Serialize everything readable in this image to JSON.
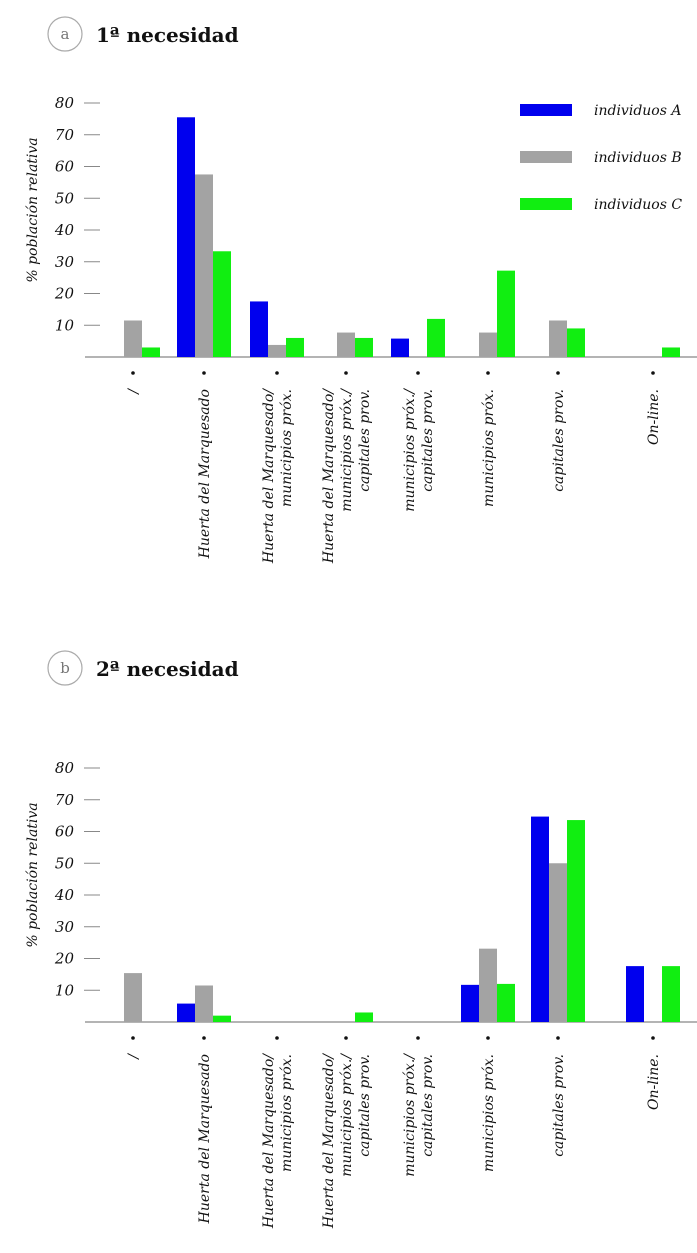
{
  "colors": {
    "A": "#0000ee",
    "B": "#a3a3a3",
    "C": "#11ee11"
  },
  "legend": [
    {
      "key": "A",
      "label": "individuos A"
    },
    {
      "key": "B",
      "label": "individuos B"
    },
    {
      "key": "C",
      "label": "individuos C"
    }
  ],
  "chart_data": [
    {
      "type": "bar",
      "badge": "a",
      "title": "1ª necesidad",
      "ylabel": "% población relativa",
      "ylim": [
        0,
        80
      ],
      "yticks": [
        10,
        20,
        30,
        40,
        50,
        60,
        70,
        80
      ],
      "legend_position": "top-right",
      "categories": [
        [
          "/"
        ],
        [
          "Huerta del Marquesado"
        ],
        [
          "Huerta del Marquesado/",
          "municipios próx."
        ],
        [
          "Huerta del Marquesado/",
          "municipios próx./",
          "capitales prov."
        ],
        [
          "municipios próx./",
          "capitales prov."
        ],
        [
          "municipios próx."
        ],
        [
          "capitales prov."
        ],
        [
          "On-line."
        ]
      ],
      "series": [
        {
          "name": "individuos A",
          "key": "A",
          "values": [
            0,
            75.5,
            17.5,
            0,
            5.8,
            0,
            0,
            0
          ]
        },
        {
          "name": "individuos B",
          "key": "B",
          "values": [
            11.5,
            57.5,
            3.8,
            7.7,
            0,
            7.7,
            11.5,
            0
          ]
        },
        {
          "name": "individuos C",
          "key": "C",
          "values": [
            3,
            33.3,
            6,
            6,
            12,
            27.2,
            9,
            3
          ]
        }
      ]
    },
    {
      "type": "bar",
      "badge": "b",
      "title": "2ª necesidad",
      "ylabel": "% población relativa",
      "ylim": [
        0,
        80
      ],
      "yticks": [
        10,
        20,
        30,
        40,
        50,
        60,
        70,
        80
      ],
      "categories": [
        [
          "/"
        ],
        [
          "Huerta del Marquesado"
        ],
        [
          "Huerta del Marquesado/",
          "municipios próx."
        ],
        [
          "Huerta del Marquesado/",
          "municipios próx./",
          "capitales prov."
        ],
        [
          "municipios próx./",
          "capitales prov."
        ],
        [
          "municipios próx."
        ],
        [
          "capitales prov."
        ],
        [
          "On-line."
        ]
      ],
      "series": [
        {
          "name": "individuos A",
          "key": "A",
          "values": [
            0,
            5.8,
            0,
            0,
            0,
            11.7,
            64.7,
            17.6
          ]
        },
        {
          "name": "individuos B",
          "key": "B",
          "values": [
            15.4,
            11.5,
            0,
            0,
            0,
            23.1,
            50,
            0
          ]
        },
        {
          "name": "individuos C",
          "key": "C",
          "values": [
            0,
            2,
            0,
            3,
            0,
            12,
            63.6,
            17.6
          ]
        }
      ]
    }
  ]
}
